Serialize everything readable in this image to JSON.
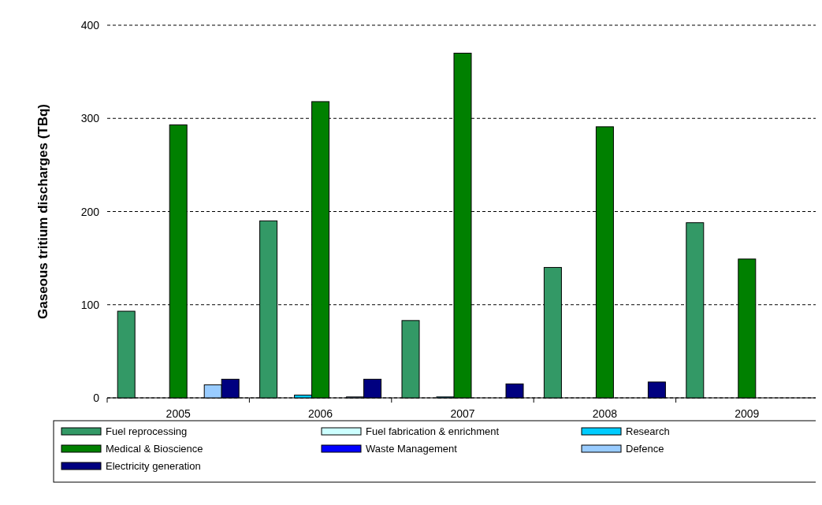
{
  "chart_data": {
    "type": "bar",
    "ylabel": "Gaseous tritium discharges (TBq)",
    "categories": [
      "2005",
      "2006",
      "2007",
      "2008",
      "2009"
    ],
    "series": [
      {
        "name": "Fuel reprocessing",
        "color": "#339966",
        "values": [
          93,
          190,
          83,
          140,
          188
        ]
      },
      {
        "name": "Fuel fabrication & enrichment",
        "color": "#ccffff",
        "values": [
          null,
          null,
          null,
          null,
          null
        ]
      },
      {
        "name": "Research",
        "color": "#00ccff",
        "values": [
          null,
          3,
          1,
          null,
          null
        ]
      },
      {
        "name": "Medical & Bioscience",
        "color": "#008000",
        "values": [
          293,
          318,
          370,
          291,
          149
        ]
      },
      {
        "name": "Waste Management",
        "color": "#0000ff",
        "values": [
          null,
          null,
          null,
          null,
          null
        ]
      },
      {
        "name": "Defence",
        "color": "#99ccff",
        "values": [
          14,
          1,
          null,
          null,
          null
        ]
      },
      {
        "name": "Electricity generation",
        "color": "#000080",
        "values": [
          20,
          20,
          15,
          17,
          null
        ]
      }
    ],
    "ylim": [
      0,
      400
    ],
    "yticks": [
      0,
      100,
      200,
      300,
      400
    ],
    "grid": "y",
    "legend": "bottom"
  }
}
